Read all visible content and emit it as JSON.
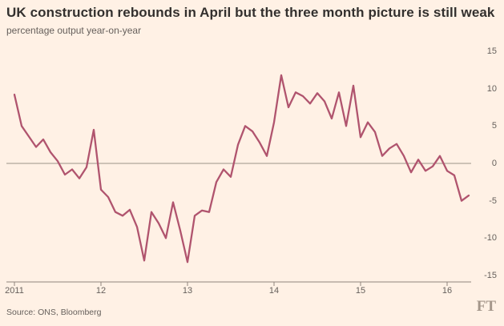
{
  "header": {
    "title": "UK construction rebounds in April but the three month picture is still weak",
    "subtitle": "percentage output year-on-year"
  },
  "footer": {
    "source": "Source: ONS, Bloomberg",
    "logo": "FT"
  },
  "colors": {
    "background": "#fff1e5",
    "line": "#b0546e",
    "title_text": "#33302e",
    "muted_text": "#66605c",
    "axis": "#8f857d",
    "zero_line": "#9b9288"
  },
  "chart_data": {
    "type": "line",
    "title": "UK construction rebounds in April but the three month picture is still weak",
    "subtitle": "percentage output year-on-year",
    "xlabel": "",
    "ylabel": "percentage output year-on-year",
    "frequency": "monthly",
    "x_start": "2011-01",
    "x_end": "2016-04",
    "ylim": [
      -15,
      15
    ],
    "grid": "zero-line only",
    "legend_position": "none",
    "y_ticks": [
      15,
      10,
      5,
      0,
      -5,
      -10,
      -15
    ],
    "x_ticks": [
      {
        "label": "2011",
        "month": 0
      },
      {
        "label": "12",
        "month": 12
      },
      {
        "label": "13",
        "month": 24
      },
      {
        "label": "14",
        "month": 36
      },
      {
        "label": "15",
        "month": 48
      },
      {
        "label": "16",
        "month": 60
      }
    ],
    "values": [
      9.2,
      5.0,
      3.6,
      2.2,
      3.2,
      1.5,
      0.3,
      -1.5,
      -0.8,
      -2.0,
      -0.5,
      4.5,
      -3.5,
      -4.5,
      -6.5,
      -7.0,
      -6.2,
      -8.5,
      -13.0,
      -6.5,
      -8.0,
      -10.0,
      -5.2,
      -9.0,
      -13.2,
      -7.0,
      -6.3,
      -6.5,
      -2.5,
      -0.8,
      -1.8,
      2.5,
      5.0,
      4.3,
      2.8,
      1.0,
      5.5,
      11.8,
      7.5,
      9.5,
      9.0,
      8.0,
      9.4,
      8.3,
      6.0,
      9.5,
      5.0,
      10.4,
      3.5,
      5.5,
      4.2,
      1.0,
      2.0,
      2.6,
      1.0,
      -1.2,
      0.5,
      -1.0,
      -0.4,
      1.0,
      -1.0,
      -1.6,
      -5.0,
      -4.3
    ]
  }
}
